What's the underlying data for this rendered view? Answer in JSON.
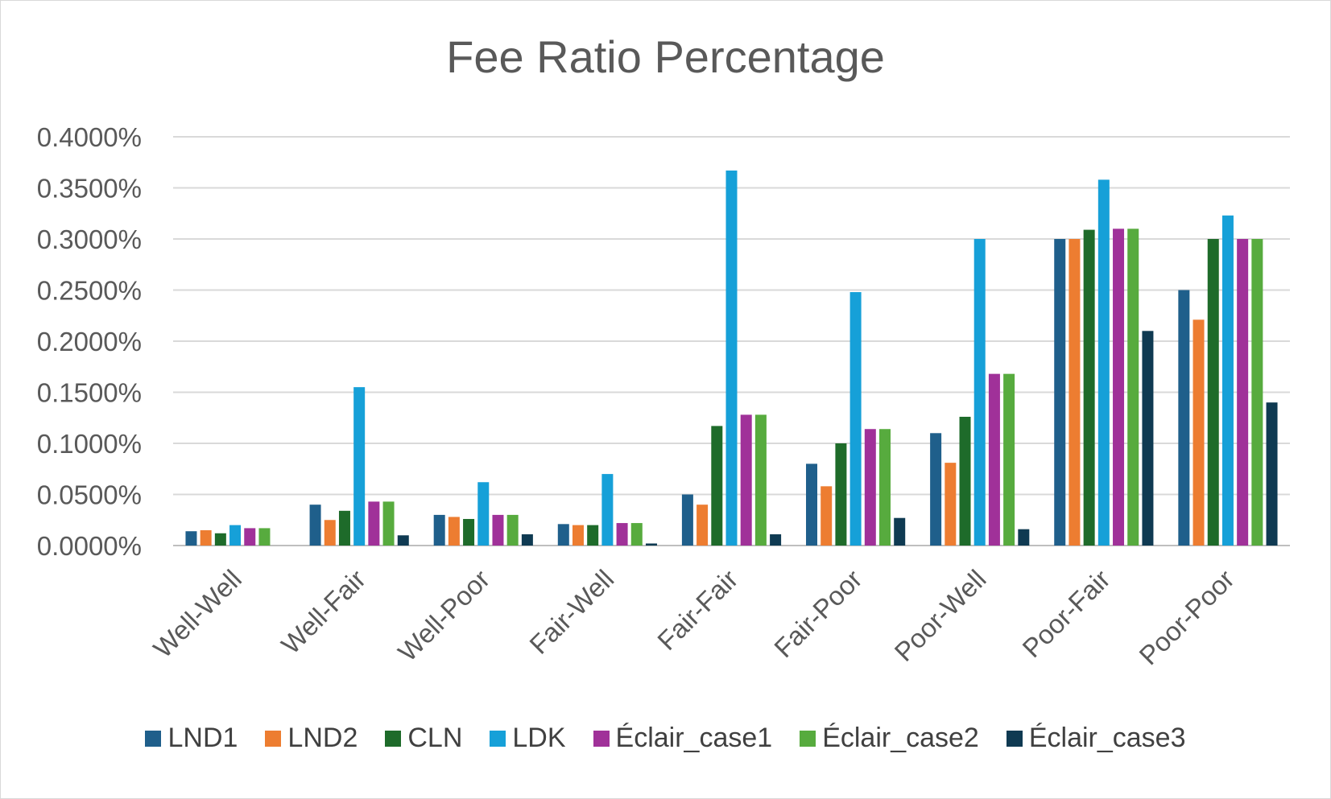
{
  "chart_data": {
    "type": "bar",
    "title": "Fee Ratio Percentage",
    "xlabel": "",
    "ylabel": "",
    "ylim": [
      0,
      0.004
    ],
    "yticks": [
      "0.0000%",
      "0.0500%",
      "0.1000%",
      "0.1500%",
      "0.2000%",
      "0.2500%",
      "0.3000%",
      "0.3500%",
      "0.4000%"
    ],
    "grid": true,
    "legend_position": "bottom",
    "categories": [
      "Well-Well",
      "Well-Fair",
      "Well-Poor",
      "Fair-Well",
      "Fair-Fair",
      "Fair-Poor",
      "Poor-Well",
      "Poor-Fair",
      "Poor-Poor"
    ],
    "series": [
      {
        "name": "LND1",
        "color": "#1f5f8b",
        "values": [
          0.00014,
          0.0004,
          0.0003,
          0.00021,
          0.0005,
          0.0008,
          0.0011,
          0.003,
          0.0025
        ]
      },
      {
        "name": "LND2",
        "color": "#ed7d31",
        "values": [
          0.00015,
          0.00025,
          0.00028,
          0.0002,
          0.0004,
          0.00058,
          0.00081,
          0.003,
          0.00221
        ]
      },
      {
        "name": "CLN",
        "color": "#1e6b2a",
        "values": [
          0.00012,
          0.00034,
          0.00026,
          0.0002,
          0.00117,
          0.001,
          0.00126,
          0.00309,
          0.003
        ]
      },
      {
        "name": "LDK",
        "color": "#16a0d8",
        "values": [
          0.0002,
          0.00155,
          0.00062,
          0.0007,
          0.00367,
          0.00248,
          0.003,
          0.00358,
          0.00323
        ]
      },
      {
        "name": "Éclair_case1",
        "color": "#a03199",
        "values": [
          0.00017,
          0.00043,
          0.0003,
          0.00022,
          0.00128,
          0.00114,
          0.00168,
          0.0031,
          0.003
        ]
      },
      {
        "name": "Éclair_case2",
        "color": "#57ab3e",
        "values": [
          0.00017,
          0.00043,
          0.0003,
          0.00022,
          0.00128,
          0.00114,
          0.00168,
          0.0031,
          0.003
        ]
      },
      {
        "name": "Éclair_case3",
        "color": "#0f3a52",
        "values": [
          0,
          0.0001,
          0.00011,
          2e-05,
          0.00011,
          0.00027,
          0.00016,
          0.0021,
          0.0014
        ]
      }
    ]
  }
}
